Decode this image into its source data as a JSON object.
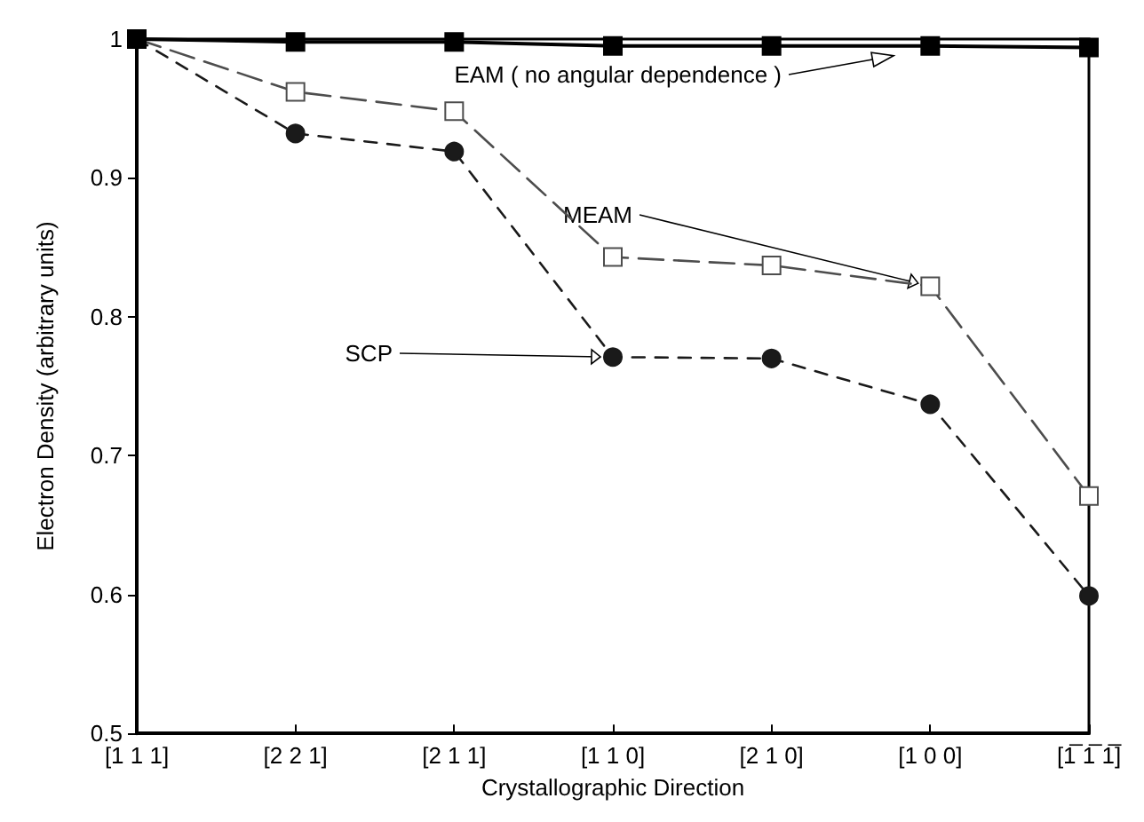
{
  "chart_data": {
    "type": "line",
    "xlabel": "Crystallographic Direction",
    "ylabel": "Electron Density (arbitrary units)",
    "categories": [
      "[1 1 1]",
      "[2 2 1]",
      "[2 1 1]",
      "[1 1 0]",
      "[2 1 0]",
      "[1 0 0]",
      "[1̅ 1̅ 1̅]"
    ],
    "ylim": [
      0.5,
      1
    ],
    "yticks": [
      {
        "value": 0.5,
        "label": "0.5"
      },
      {
        "value": 0.6,
        "label": "0.6"
      },
      {
        "value": 0.7,
        "label": "0.7"
      },
      {
        "value": 0.8,
        "label": "0.8"
      },
      {
        "value": 0.9,
        "label": "0.9"
      },
      {
        "value": 1,
        "label": "1"
      }
    ],
    "grid": false,
    "series": [
      {
        "color": "#000000",
        "marker": "square",
        "line_style": "solid",
        "values": [
          1,
          0.998,
          0.998,
          0.995,
          0.995,
          0.995,
          0.994
        ]
      },
      {
        "color": "#4d4d4d",
        "marker": "square",
        "line_style": "dashed",
        "values": [
          1,
          0.962,
          0.948,
          0.843,
          0.837,
          0.822,
          0.671
        ]
      },
      {
        "color": "#1a1a1a",
        "marker": "circle",
        "line_style": "dotted",
        "values": [
          1,
          0.932,
          0.919,
          0.771,
          0.77,
          0.737,
          0.599
        ]
      }
    ],
    "annotations": [
      {
        "text": "EAM ( no angular dependence )",
        "y": 0.988
      },
      {
        "text": "MEAM",
        "x": "[1 0 0]",
        "y": 0.822
      },
      {
        "text": "SCP",
        "x": "[1 1 0]",
        "y": 0.771
      }
    ]
  }
}
